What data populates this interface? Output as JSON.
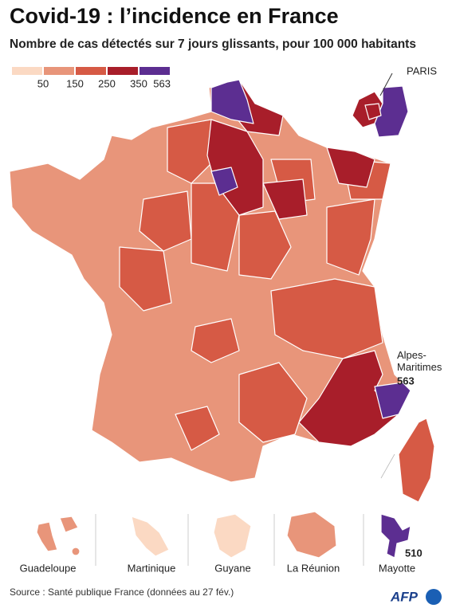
{
  "header": {
    "title": "Covid-19 : l’incidence en France",
    "subtitle": "Nombre de cas détectés sur 7 jours glissants, pour 100 000 habitants"
  },
  "legend": {
    "colors": [
      "#fbd9c3",
      "#e8957a",
      "#d65a45",
      "#a81e2a",
      "#5c2e91"
    ],
    "ticks": [
      50,
      150,
      250,
      350,
      563
    ]
  },
  "annotations": {
    "paris": "PARIS",
    "alpes_name": "Alpes-\nMaritimes",
    "alpes_value": 563,
    "mayotte_value": 510
  },
  "overseas": [
    "Guadeloupe",
    "Martinique",
    "Guyane",
    "La Réunion",
    "Mayotte"
  ],
  "source": "Source : Santé publique France (données au 27 fév.)",
  "logo": "AFP"
}
